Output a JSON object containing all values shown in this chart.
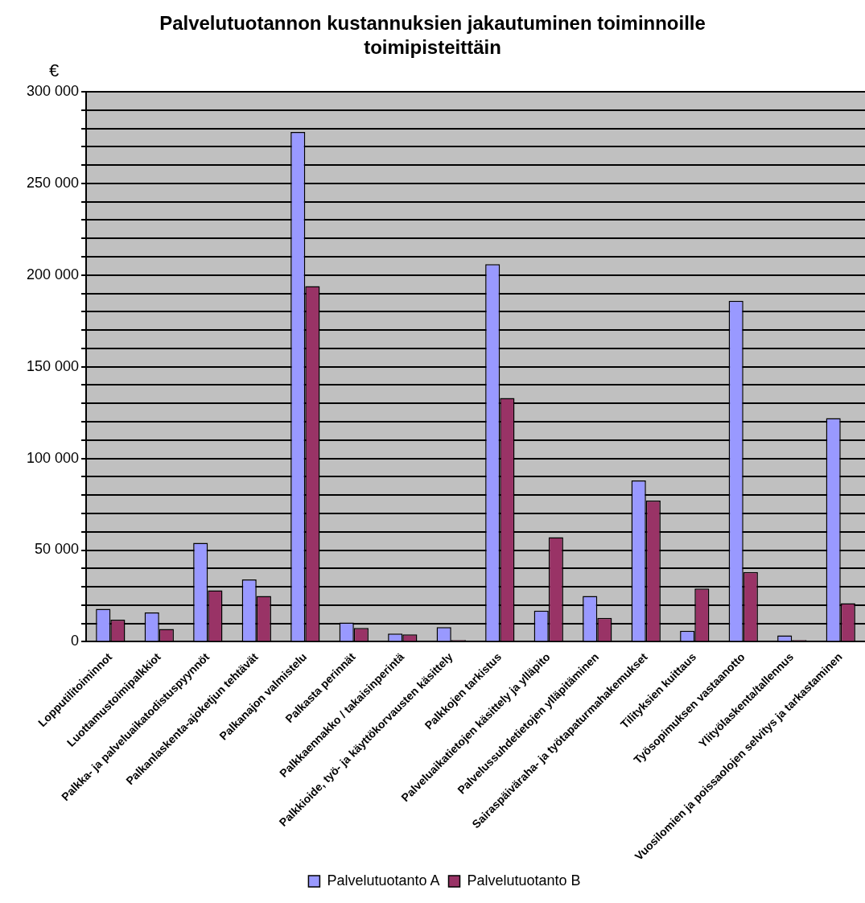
{
  "chart_data": {
    "type": "bar",
    "title": "Palvelutuotannon kustannuksien jakautuminen toiminnoille toimipisteittäin",
    "ylabel": "€",
    "categories": [
      "Lopputilitoiminnot",
      "Luottamustoimipalkkiot",
      "Palkka- ja palveluaikatodistuspyynnöt",
      "Palkanlaskenta-ajoketjun tehtävät",
      "Palkanajon valmistelu",
      "Palkasta perinnät",
      "Palkkaennakko / takaisinperintä",
      "Palkkioide, työ- ja käyttökorvausten käsittely",
      "Palkkojen tarkistus",
      "Palveluaikatietojen käsittely ja ylläpito",
      "Palvelussuhdetietojen ylläpitäminen",
      "Sairaspäiväraha- ja työtapaturmahakemukset",
      "Tilityksien kuittaus",
      "Työsopimuksen vastaanotto",
      "Ylityölaskenta/tallennus",
      "Vuosilomien ja poissaolojen selvitys ja tarkastaminen"
    ],
    "series": [
      {
        "name": "Palvelutuotanto A",
        "color": "#9999ff",
        "values": [
          18000,
          16000,
          54000,
          34000,
          278000,
          10500,
          4500,
          8000,
          206000,
          17000,
          25000,
          88000,
          6000,
          186000,
          3500,
          122000
        ]
      },
      {
        "name": "Palvelutuotanto B",
        "color": "#993366",
        "values": [
          12000,
          7000,
          28000,
          25000,
          194000,
          7500,
          4000,
          1000,
          133000,
          57000,
          13000,
          77000,
          29000,
          38000,
          1000,
          21000
        ]
      }
    ],
    "ylim": [
      0,
      300000
    ],
    "yticks": [
      {
        "value": 0,
        "label": "0"
      },
      {
        "value": 10000,
        "label": null
      },
      {
        "value": 20000,
        "label": null
      },
      {
        "value": 30000,
        "label": null
      },
      {
        "value": 40000,
        "label": null
      },
      {
        "value": 50000,
        "label": "50 000"
      },
      {
        "value": 60000,
        "label": null
      },
      {
        "value": 70000,
        "label": null
      },
      {
        "value": 80000,
        "label": null
      },
      {
        "value": 90000,
        "label": null
      },
      {
        "value": 100000,
        "label": "100 000"
      },
      {
        "value": 110000,
        "label": null
      },
      {
        "value": 120000,
        "label": null
      },
      {
        "value": 130000,
        "label": null
      },
      {
        "value": 140000,
        "label": null
      },
      {
        "value": 150000,
        "label": "150 000"
      },
      {
        "value": 160000,
        "label": null
      },
      {
        "value": 170000,
        "label": null
      },
      {
        "value": 180000,
        "label": null
      },
      {
        "value": 190000,
        "label": null
      },
      {
        "value": 200000,
        "label": "200 000"
      },
      {
        "value": 210000,
        "label": null
      },
      {
        "value": 220000,
        "label": null
      },
      {
        "value": 230000,
        "label": null
      },
      {
        "value": 240000,
        "label": null
      },
      {
        "value": 250000,
        "label": "250 000"
      },
      {
        "value": 260000,
        "label": null
      },
      {
        "value": 270000,
        "label": null
      },
      {
        "value": 280000,
        "label": null
      },
      {
        "value": 290000,
        "label": null
      },
      {
        "value": 300000,
        "label": "300 000"
      }
    ],
    "grid": "y",
    "legend": "bottom"
  }
}
